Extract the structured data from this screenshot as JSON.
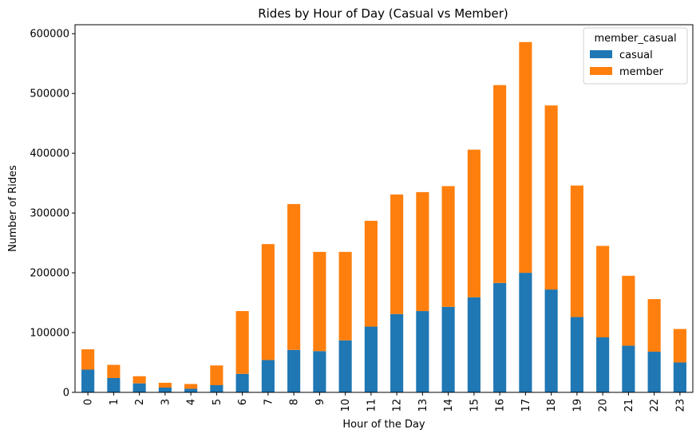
{
  "chart_data": {
    "type": "bar",
    "stacked": true,
    "title": "Rides by Hour of Day (Casual vs Member)",
    "xlabel": "Hour of the Day",
    "ylabel": "Number of Rides",
    "ylim": [
      0,
      615000
    ],
    "yticks": [
      0,
      100000,
      200000,
      300000,
      400000,
      500000,
      600000
    ],
    "ytick_labels": [
      "0",
      "100000",
      "200000",
      "300000",
      "400000",
      "500000",
      "600000"
    ],
    "categories": [
      "0",
      "1",
      "2",
      "3",
      "4",
      "5",
      "6",
      "7",
      "8",
      "9",
      "10",
      "11",
      "12",
      "13",
      "14",
      "15",
      "16",
      "17",
      "18",
      "19",
      "20",
      "21",
      "22",
      "23"
    ],
    "legend": {
      "title": "member_casual",
      "placement": "top-right"
    },
    "grid": false,
    "series": [
      {
        "name": "casual",
        "color": "#1f77b4",
        "values": [
          38000,
          24000,
          15000,
          8000,
          6000,
          12000,
          31000,
          54000,
          71000,
          69000,
          87000,
          110000,
          131000,
          136000,
          143000,
          159000,
          183000,
          200000,
          172000,
          126000,
          92000,
          78000,
          68000,
          50000
        ]
      },
      {
        "name": "member",
        "color": "#ff7f0e",
        "values": [
          34000,
          22000,
          12000,
          8000,
          8000,
          33000,
          105000,
          194000,
          244000,
          166000,
          148000,
          177000,
          200000,
          199000,
          202000,
          247000,
          331000,
          386000,
          308000,
          220000,
          153000,
          117000,
          88000,
          56000
        ]
      }
    ]
  }
}
